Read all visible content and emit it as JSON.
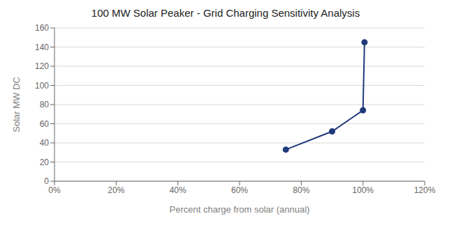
{
  "chart_data": {
    "type": "line",
    "title": "100 MW Solar Peaker - Grid Charging Sensitivity Analysis",
    "xlabel": "Percent charge from solar (annual)",
    "ylabel": "Solar MW DC",
    "x": [
      0.75,
      0.9,
      1.0,
      1.005
    ],
    "values": [
      33,
      52,
      74,
      145
    ],
    "color": "#1f3a7a",
    "marker": "circle",
    "xlim": [
      0.0,
      1.2
    ],
    "ylim": [
      0,
      160
    ],
    "xticks": [
      {
        "value": 0.0,
        "label": "0%"
      },
      {
        "value": 0.2,
        "label": "20%"
      },
      {
        "value": 0.4,
        "label": "40%"
      },
      {
        "value": 0.6,
        "label": "60%"
      },
      {
        "value": 0.8,
        "label": "80%"
      },
      {
        "value": 1.0,
        "label": "100%"
      },
      {
        "value": 1.2,
        "label": "120%"
      }
    ],
    "yticks": [
      0,
      20,
      40,
      60,
      80,
      100,
      120,
      140,
      160
    ],
    "grid": "y"
  }
}
